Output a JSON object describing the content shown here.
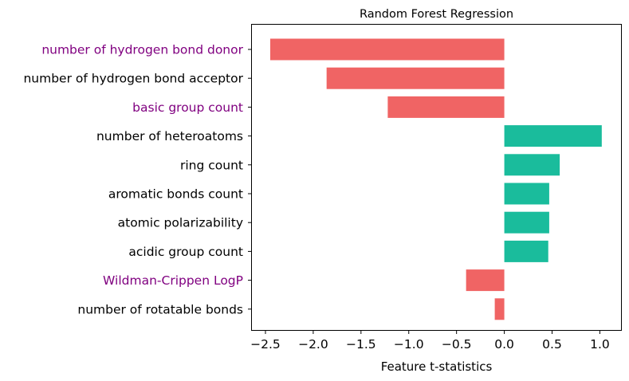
{
  "chart_data": {
    "type": "bar",
    "orientation": "horizontal",
    "title": "Random Forest Regression",
    "xlabel": "Feature t-statistics",
    "ylabel": "",
    "xlim": [
      -2.65,
      1.23
    ],
    "xticks": [
      -2.5,
      -2.0,
      -1.5,
      -1.0,
      -0.5,
      0.0,
      0.5,
      1.0
    ],
    "xtick_labels": [
      "−2.5",
      "−2.0",
      "−1.5",
      "−1.0",
      "−0.5",
      "0.0",
      "0.5",
      "1.0"
    ],
    "grid": false,
    "legend": "none",
    "colors": {
      "negative": "#f06464",
      "positive": "#1abc9c",
      "highlight_label": "#800080",
      "default_label": "#000000"
    },
    "categories": [
      "number of hydrogen bond donor",
      "number of hydrogen bond acceptor",
      "basic group count",
      "number of heteroatoms",
      "ring count",
      "aromatic bonds count",
      "atomic polarizability",
      "acidic group count",
      "Wildman-Crippen LogP",
      "number of rotatable bonds"
    ],
    "values": [
      -2.45,
      -1.86,
      -1.22,
      1.02,
      0.58,
      0.47,
      0.47,
      0.46,
      -0.4,
      -0.1
    ],
    "label_highlight": [
      true,
      false,
      true,
      false,
      false,
      false,
      false,
      false,
      true,
      false
    ]
  }
}
